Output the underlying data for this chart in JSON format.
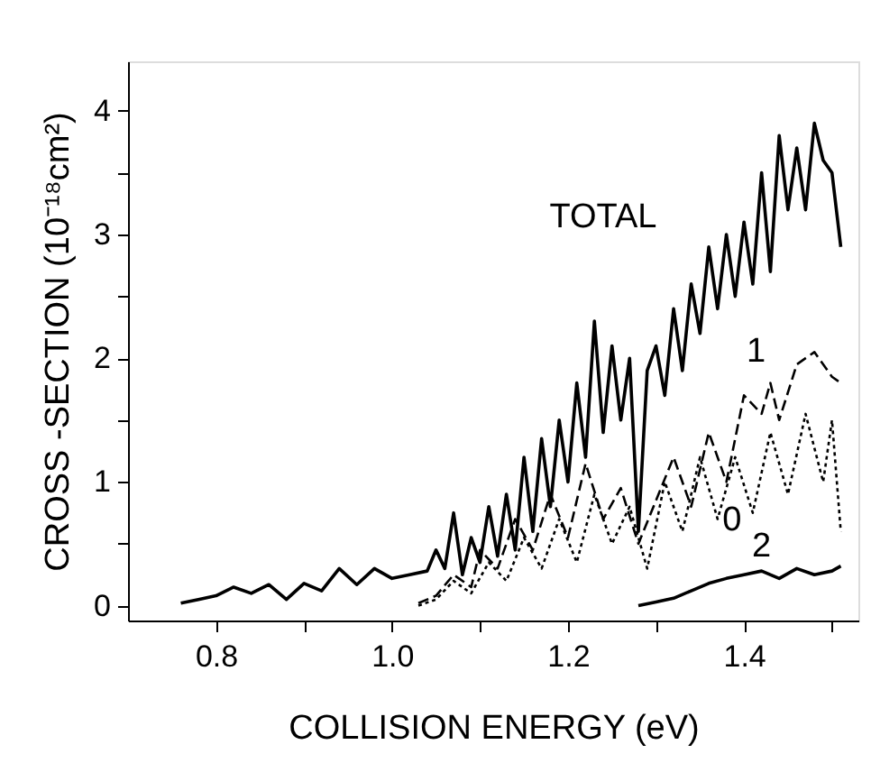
{
  "chart_data": {
    "type": "line",
    "xlabel": "COLLISION  ENERGY (eV)",
    "ylabel": "CROSS -SECTION (10⁻¹⁸cm²)",
    "xlim": [
      0.7,
      1.53
    ],
    "ylim": [
      -0.12,
      4.4
    ],
    "xticks": [
      0.8,
      {
        "value": 0.9,
        "label": null
      },
      {
        "value": 1.0,
        "label": "1.0"
      },
      {
        "value": 1.1,
        "label": null
      },
      1.2,
      {
        "value": 1.3,
        "label": null
      },
      1.4,
      {
        "value": 1.5,
        "label": null
      }
    ],
    "yticks": [
      0,
      {
        "value": 0.5,
        "label": null
      },
      1,
      {
        "value": 1.5,
        "label": null
      },
      2,
      {
        "value": 2.5,
        "label": null
      },
      3,
      {
        "value": 3.5,
        "label": null
      },
      4
    ],
    "grid": false,
    "legend": false,
    "marker": "none",
    "series": [
      {
        "name": "TOTAL",
        "color": "#000000",
        "line_style": "solid",
        "x": [
          0.76,
          0.78,
          0.8,
          0.82,
          0.84,
          0.86,
          0.88,
          0.9,
          0.92,
          0.94,
          0.96,
          0.98,
          1.0,
          1.02,
          1.04,
          1.05,
          1.06,
          1.07,
          1.08,
          1.09,
          1.1,
          1.11,
          1.12,
          1.13,
          1.14,
          1.15,
          1.16,
          1.17,
          1.18,
          1.19,
          1.2,
          1.21,
          1.22,
          1.23,
          1.24,
          1.25,
          1.26,
          1.27,
          1.28,
          1.29,
          1.3,
          1.31,
          1.32,
          1.33,
          1.34,
          1.35,
          1.36,
          1.37,
          1.38,
          1.39,
          1.4,
          1.41,
          1.42,
          1.43,
          1.44,
          1.45,
          1.46,
          1.47,
          1.48,
          1.49,
          1.5,
          1.51
        ],
        "values": [
          0.02,
          0.05,
          0.08,
          0.15,
          0.1,
          0.17,
          0.05,
          0.18,
          0.12,
          0.3,
          0.17,
          0.3,
          0.22,
          0.25,
          0.28,
          0.45,
          0.3,
          0.75,
          0.25,
          0.55,
          0.35,
          0.8,
          0.4,
          0.9,
          0.45,
          1.2,
          0.6,
          1.35,
          0.8,
          1.5,
          1.0,
          1.8,
          1.2,
          2.3,
          1.4,
          2.1,
          1.5,
          2.0,
          0.6,
          1.9,
          2.1,
          1.7,
          2.4,
          1.9,
          2.6,
          2.2,
          2.9,
          2.4,
          3.0,
          2.5,
          3.1,
          2.6,
          3.5,
          2.7,
          3.8,
          3.2,
          3.7,
          3.2,
          3.9,
          3.6,
          3.5,
          2.9
        ]
      },
      {
        "name": "1",
        "color": "#000000",
        "line_style": "dashed",
        "x": [
          1.03,
          1.05,
          1.07,
          1.09,
          1.1,
          1.12,
          1.14,
          1.16,
          1.18,
          1.2,
          1.22,
          1.24,
          1.26,
          1.28,
          1.3,
          1.32,
          1.34,
          1.36,
          1.38,
          1.4,
          1.42,
          1.43,
          1.44,
          1.46,
          1.48,
          1.5,
          1.51
        ],
        "values": [
          0.02,
          0.08,
          0.25,
          0.15,
          0.45,
          0.3,
          0.7,
          0.45,
          0.9,
          0.55,
          1.15,
          0.7,
          0.95,
          0.5,
          0.85,
          1.2,
          0.8,
          1.4,
          1.0,
          1.7,
          1.55,
          1.8,
          1.5,
          1.95,
          2.05,
          1.85,
          1.8
        ]
      },
      {
        "name": "0",
        "color": "#000000",
        "line_style": "dotted",
        "x": [
          1.03,
          1.05,
          1.07,
          1.09,
          1.11,
          1.13,
          1.15,
          1.17,
          1.19,
          1.21,
          1.23,
          1.25,
          1.27,
          1.29,
          1.31,
          1.33,
          1.35,
          1.37,
          1.39,
          1.41,
          1.43,
          1.45,
          1.47,
          1.49,
          1.5,
          1.51
        ],
        "values": [
          0.0,
          0.05,
          0.2,
          0.1,
          0.35,
          0.2,
          0.55,
          0.3,
          0.7,
          0.35,
          0.9,
          0.5,
          0.8,
          0.3,
          1.0,
          0.6,
          1.2,
          0.7,
          1.2,
          0.75,
          1.4,
          0.9,
          1.55,
          1.0,
          1.5,
          0.6
        ]
      },
      {
        "name": "2",
        "color": "#000000",
        "line_style": "solid",
        "x": [
          1.28,
          1.3,
          1.32,
          1.34,
          1.36,
          1.38,
          1.4,
          1.42,
          1.44,
          1.46,
          1.48,
          1.5,
          1.51
        ],
        "values": [
          0.0,
          0.03,
          0.06,
          0.12,
          0.18,
          0.22,
          0.25,
          0.28,
          0.22,
          0.3,
          0.25,
          0.28,
          0.32
        ]
      }
    ]
  }
}
